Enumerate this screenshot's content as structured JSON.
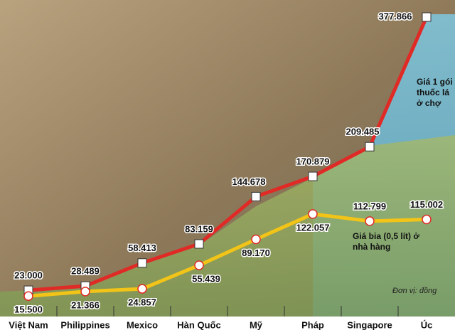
{
  "chart_data": {
    "type": "line",
    "categories": [
      "Việt Nam",
      "Philippines",
      "Mexico",
      "Hàn Quốc",
      "Mỹ",
      "Pháp",
      "Singapore",
      "Úc"
    ],
    "series": [
      {
        "name": "Giá 1 gói thuốc lá ở chợ",
        "color": "#e02a26",
        "values": [
          23000,
          28489,
          58413,
          83159,
          144678,
          170879,
          209485,
          377866
        ],
        "value_labels": [
          "23.000",
          "28.489",
          "58.413",
          "83.159",
          "144.678",
          "170.879",
          "209.485",
          "377.866"
        ]
      },
      {
        "name": "Giá bia (0,5 lít) ở nhà hàng",
        "color": "#f2c417",
        "values": [
          15500,
          21366,
          24857,
          55439,
          89170,
          122057,
          112799,
          115002
        ],
        "value_labels": [
          "15.500",
          "21.366",
          "24.857",
          "55.439",
          "89.170",
          "122.057",
          "112.799",
          "115.002"
        ]
      }
    ],
    "note": "Đơn vị: đồng"
  }
}
